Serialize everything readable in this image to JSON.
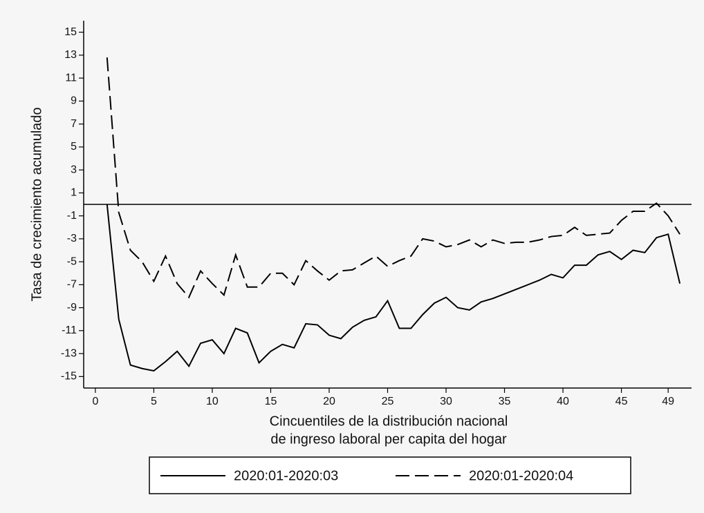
{
  "chart_data": {
    "type": "line",
    "ylabel": "Tasa de crecimiento acumulado",
    "xlabel": [
      "Cincuentiles de la distribución nacional",
      "de ingreso laboral per capita del hogar"
    ],
    "x": [
      1,
      2,
      3,
      4,
      5,
      6,
      7,
      8,
      9,
      10,
      11,
      12,
      13,
      14,
      15,
      16,
      17,
      18,
      19,
      20,
      21,
      22,
      23,
      24,
      25,
      26,
      27,
      28,
      29,
      30,
      31,
      32,
      33,
      34,
      35,
      36,
      37,
      38,
      39,
      40,
      41,
      42,
      43,
      44,
      45,
      46,
      47,
      48,
      49,
      50
    ],
    "series": [
      {
        "name": "2020:01-2020:03",
        "color": "#000000",
        "dash": false,
        "values": [
          0,
          -10,
          -14,
          -14.3,
          -14.5,
          -13.7,
          -12.8,
          -14.1,
          -12.1,
          -11.8,
          -13,
          -10.8,
          -11.2,
          -13.8,
          -12.8,
          -12.2,
          -12.5,
          -10.4,
          -10.5,
          -11.4,
          -11.7,
          -10.7,
          -10.1,
          -9.8,
          -8.4,
          -10.8,
          -10.8,
          -9.6,
          -8.6,
          -8.1,
          -9,
          -9.2,
          -8.5,
          -8.2,
          -7.8,
          -7.4,
          -7,
          -6.6,
          -6.1,
          -6.4,
          -5.3,
          -5.3,
          -4.4,
          -4.1,
          -4.8,
          -4,
          -4.2,
          -2.9,
          -2.6,
          -6.9
        ]
      },
      {
        "name": "2020:01-2020:04",
        "color": "#000000",
        "dash": true,
        "values": [
          12.8,
          -0.7,
          -4,
          -5,
          -6.7,
          -4.5,
          -6.9,
          -8.1,
          -5.8,
          -6.9,
          -7.9,
          -4.4,
          -7.2,
          -7.2,
          -6,
          -6,
          -7,
          -4.9,
          -5.8,
          -6.6,
          -5.8,
          -5.7,
          -5.1,
          -4.5,
          -5.4,
          -4.9,
          -4.5,
          -3,
          -3.2,
          -3.7,
          -3.5,
          -3.1,
          -3.7,
          -3.1,
          -3.4,
          -3.3,
          -3.3,
          -3.1,
          -2.8,
          -2.7,
          -2,
          -2.7,
          -2.6,
          -2.5,
          -1.4,
          -0.6,
          -0.6,
          0.1,
          -1,
          -2.6
        ]
      }
    ],
    "hline": 0,
    "xlim": [
      -1,
      51
    ],
    "ylim": [
      -16,
      16
    ],
    "xticks": [
      0,
      5,
      10,
      15,
      20,
      25,
      30,
      35,
      40,
      45,
      49
    ],
    "yticks": [
      -15,
      -13,
      -11,
      -9,
      -7,
      -5,
      -3,
      -1,
      1,
      3,
      5,
      7,
      9,
      11,
      13,
      15
    ]
  }
}
